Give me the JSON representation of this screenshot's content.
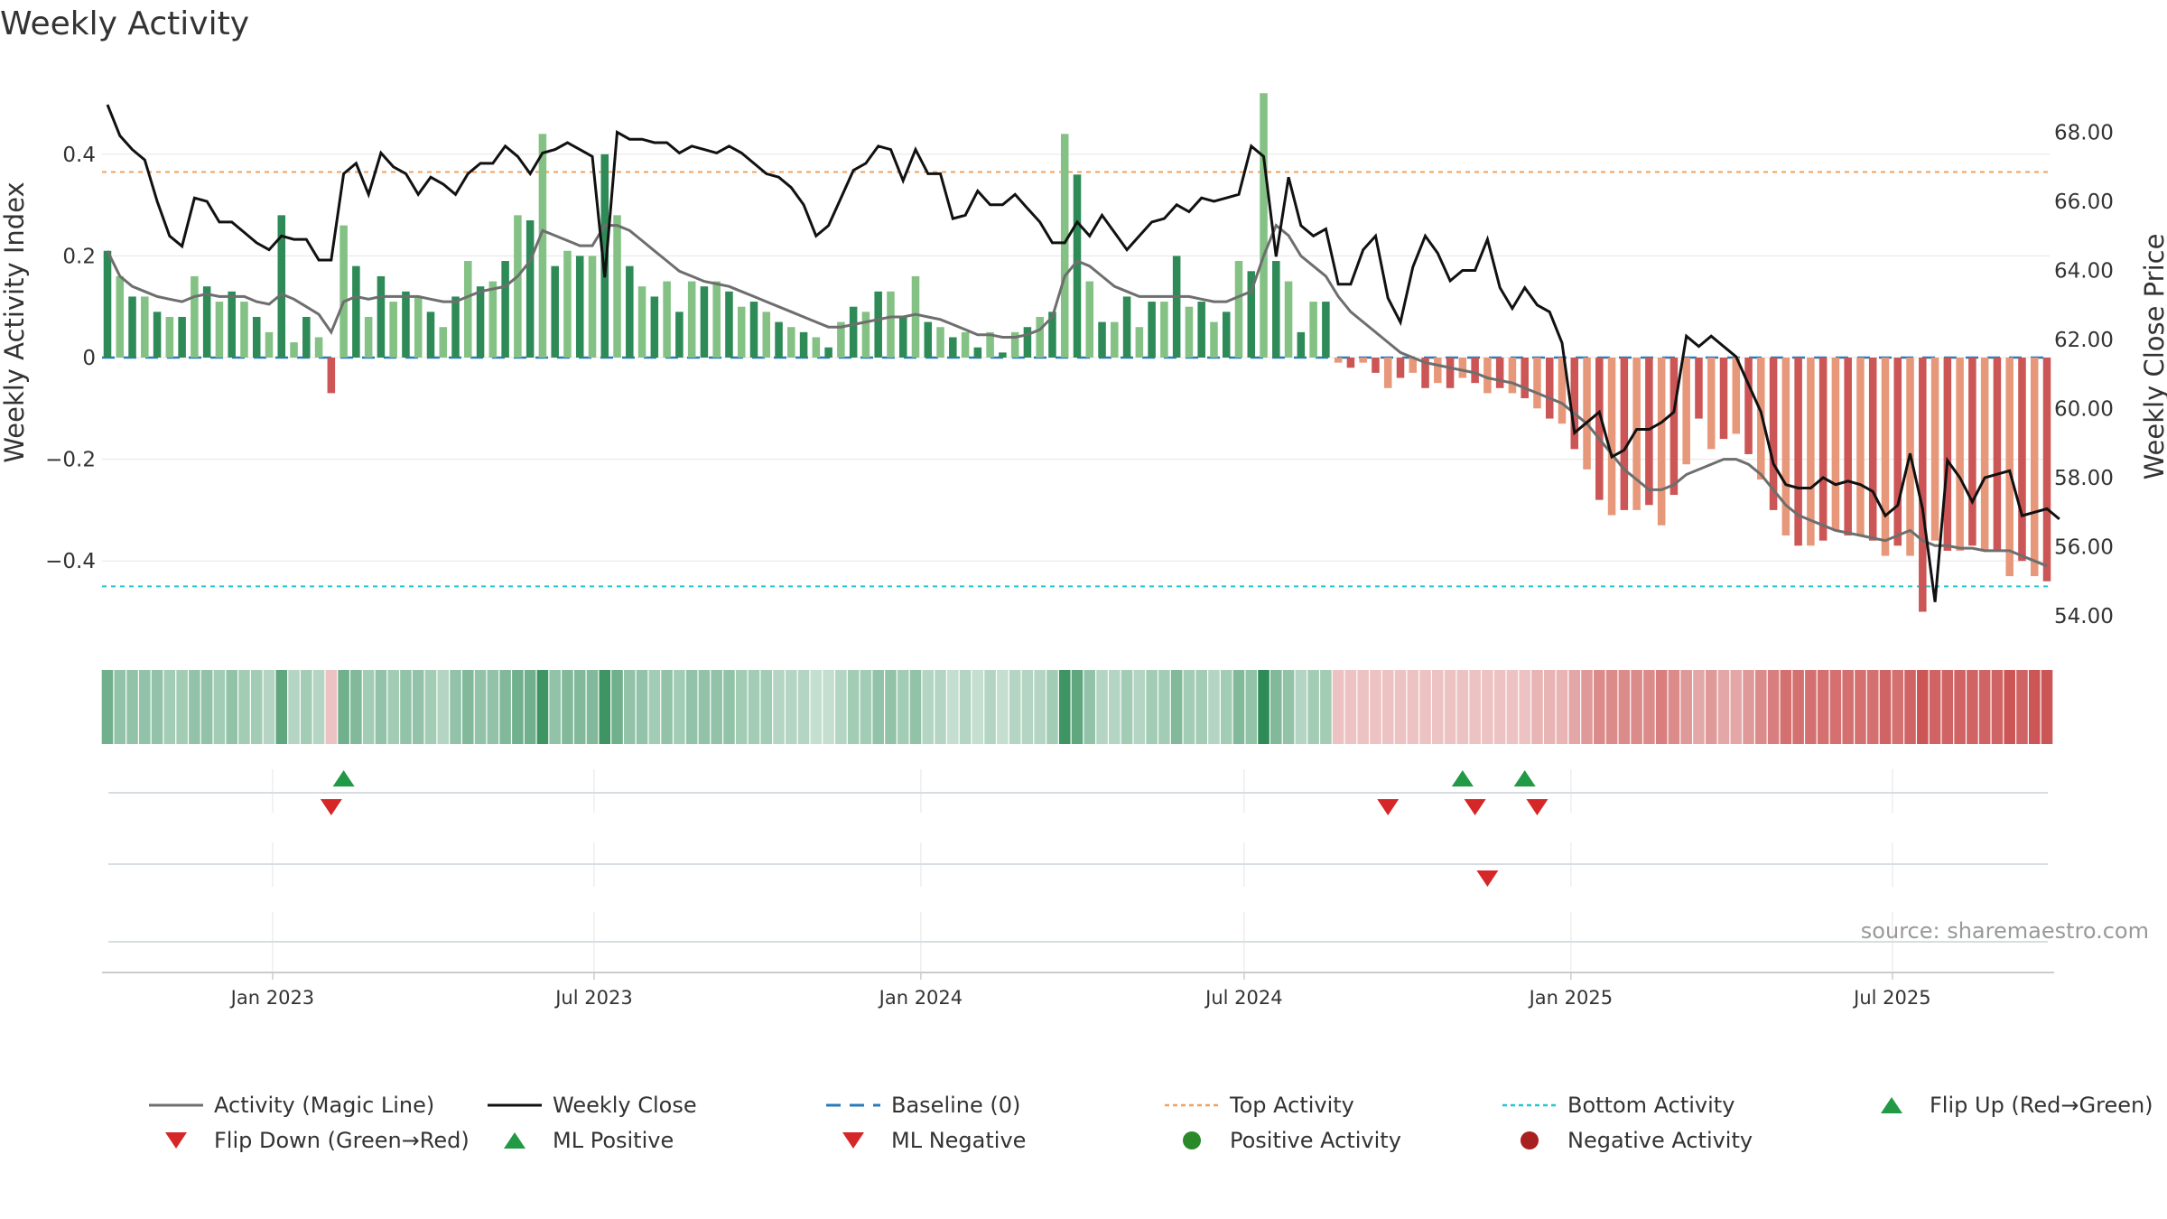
{
  "chart_data": {
    "type": "bar",
    "title": "Weekly Activity",
    "ylabel": "Weekly Activity Index",
    "y2label": "Weekly Close Price",
    "ylim": [
      -0.5,
      0.55
    ],
    "y2lim": [
      53.6,
      70.0
    ],
    "yticks": [
      "0.4",
      "0.2",
      "0",
      "−0.2",
      "−0.4"
    ],
    "ytick_values": [
      0.4,
      0.2,
      0,
      -0.2,
      -0.4
    ],
    "y2ticks": [
      "68.00",
      "66.00",
      "64.00",
      "62.00",
      "60.00",
      "58.00",
      "56.00",
      "54.00"
    ],
    "y2tick_values": [
      68,
      66,
      64,
      62,
      60,
      58,
      56,
      54
    ],
    "x_start": "2022-09-30",
    "x_step_days": 7,
    "xticks": [
      "Jan 2023",
      "Jul 2023",
      "Jan 2024",
      "Jul 2024",
      "Jan 2025",
      "Jul 2025"
    ],
    "xtick_dates": [
      "2023-01-01",
      "2023-07-01",
      "2024-01-01",
      "2024-07-01",
      "2025-01-01",
      "2025-07-01"
    ],
    "top_activity": 0.365,
    "bottom_activity": -0.45,
    "baseline": 0,
    "activity": [
      0.21,
      0.16,
      0.12,
      0.12,
      0.09,
      0.08,
      0.08,
      0.16,
      0.14,
      0.11,
      0.13,
      0.11,
      0.08,
      0.05,
      0.28,
      0.03,
      0.08,
      0.04,
      -0.07,
      0.26,
      0.18,
      0.08,
      0.16,
      0.11,
      0.13,
      0.12,
      0.09,
      0.06,
      0.12,
      0.19,
      0.14,
      0.15,
      0.19,
      0.28,
      0.27,
      0.44,
      0.18,
      0.21,
      0.2,
      0.2,
      0.4,
      0.28,
      0.18,
      0.14,
      0.12,
      0.15,
      0.09,
      0.15,
      0.14,
      0.15,
      0.13,
      0.1,
      0.11,
      0.09,
      0.07,
      0.06,
      0.05,
      0.04,
      0.02,
      0.07,
      0.1,
      0.09,
      0.13,
      0.13,
      0.08,
      0.16,
      0.07,
      0.06,
      0.04,
      0.05,
      0.02,
      0.05,
      0.01,
      0.05,
      0.06,
      0.08,
      0.09,
      0.44,
      0.36,
      0.15,
      0.07,
      0.07,
      0.12,
      0.06,
      0.11,
      0.11,
      0.2,
      0.1,
      0.11,
      0.07,
      0.09,
      0.19,
      0.17,
      0.52,
      0.19,
      0.15,
      0.05,
      0.11,
      0.11,
      -0.01,
      -0.02,
      -0.01,
      -0.03,
      -0.06,
      -0.04,
      -0.03,
      -0.06,
      -0.05,
      -0.06,
      -0.04,
      -0.05,
      -0.07,
      -0.06,
      -0.07,
      -0.08,
      -0.1,
      -0.12,
      -0.13,
      -0.18,
      -0.22,
      -0.28,
      -0.31,
      -0.3,
      -0.3,
      -0.29,
      -0.33,
      -0.27,
      -0.21,
      -0.12,
      -0.18,
      -0.16,
      -0.15,
      -0.19,
      -0.24,
      -0.3,
      -0.35,
      -0.37,
      -0.37,
      -0.36,
      -0.34,
      -0.35,
      -0.35,
      -0.36,
      -0.39,
      -0.37,
      -0.39,
      -0.5,
      -0.36,
      -0.38,
      -0.38,
      -0.37,
      -0.38,
      -0.38,
      -0.43,
      -0.4,
      -0.43,
      -0.44
    ],
    "magic_line": [
      0.21,
      0.16,
      0.14,
      0.13,
      0.12,
      0.115,
      0.11,
      0.12,
      0.125,
      0.12,
      0.12,
      0.12,
      0.11,
      0.105,
      0.125,
      0.115,
      0.1,
      0.085,
      0.05,
      0.11,
      0.12,
      0.115,
      0.12,
      0.12,
      0.12,
      0.12,
      0.115,
      0.11,
      0.11,
      0.12,
      0.13,
      0.135,
      0.14,
      0.16,
      0.19,
      0.25,
      0.24,
      0.23,
      0.22,
      0.22,
      0.26,
      0.26,
      0.25,
      0.23,
      0.21,
      0.19,
      0.17,
      0.16,
      0.15,
      0.145,
      0.14,
      0.13,
      0.12,
      0.11,
      0.1,
      0.09,
      0.08,
      0.07,
      0.06,
      0.06,
      0.065,
      0.07,
      0.075,
      0.08,
      0.08,
      0.085,
      0.08,
      0.075,
      0.065,
      0.055,
      0.045,
      0.045,
      0.04,
      0.04,
      0.045,
      0.055,
      0.08,
      0.16,
      0.19,
      0.18,
      0.16,
      0.14,
      0.13,
      0.12,
      0.12,
      0.12,
      0.12,
      0.12,
      0.115,
      0.11,
      0.11,
      0.12,
      0.13,
      0.2,
      0.26,
      0.24,
      0.2,
      0.18,
      0.16,
      0.12,
      0.09,
      0.07,
      0.05,
      0.03,
      0.01,
      0.0,
      -0.01,
      -0.015,
      -0.02,
      -0.025,
      -0.03,
      -0.04,
      -0.045,
      -0.05,
      -0.06,
      -0.07,
      -0.08,
      -0.09,
      -0.11,
      -0.13,
      -0.16,
      -0.19,
      -0.22,
      -0.24,
      -0.26,
      -0.26,
      -0.25,
      -0.23,
      -0.22,
      -0.21,
      -0.2,
      -0.2,
      -0.21,
      -0.23,
      -0.26,
      -0.29,
      -0.31,
      -0.32,
      -0.33,
      -0.34,
      -0.345,
      -0.35,
      -0.355,
      -0.36,
      -0.35,
      -0.34,
      -0.36,
      -0.37,
      -0.37,
      -0.375,
      -0.375,
      -0.38,
      -0.38,
      -0.38,
      -0.39,
      -0.4,
      -0.41
    ],
    "weekly_close": [
      68.8,
      67.9,
      67.5,
      67.2,
      66.0,
      65.0,
      64.7,
      66.1,
      66.0,
      65.4,
      65.4,
      65.1,
      64.8,
      64.6,
      65.0,
      64.9,
      64.9,
      64.3,
      64.3,
      66.8,
      67.1,
      66.2,
      67.4,
      67.0,
      66.8,
      66.2,
      66.7,
      66.5,
      66.2,
      66.8,
      67.1,
      67.1,
      67.6,
      67.3,
      66.8,
      67.4,
      67.5,
      67.7,
      67.5,
      67.3,
      63.8,
      68.0,
      67.8,
      67.8,
      67.7,
      67.7,
      67.4,
      67.6,
      67.5,
      67.4,
      67.6,
      67.4,
      67.1,
      66.8,
      66.7,
      66.4,
      65.9,
      65.0,
      65.3,
      66.1,
      66.9,
      67.1,
      67.6,
      67.5,
      66.6,
      67.5,
      66.8,
      66.8,
      65.5,
      65.6,
      66.3,
      65.9,
      65.9,
      66.2,
      65.8,
      65.4,
      64.8,
      64.8,
      65.4,
      65.0,
      65.6,
      65.1,
      64.6,
      65.0,
      65.4,
      65.5,
      65.9,
      65.7,
      66.1,
      66.0,
      66.1,
      66.2,
      67.6,
      67.3,
      64.4,
      66.7,
      65.3,
      65.0,
      65.2,
      63.6,
      63.6,
      64.6,
      65.0,
      63.2,
      62.5,
      64.1,
      65.0,
      64.5,
      63.7,
      64.0,
      64.0,
      64.9,
      63.5,
      62.9,
      63.5,
      63.0,
      62.8,
      61.9,
      59.3,
      59.6,
      59.9,
      58.6,
      58.8,
      59.4,
      59.4,
      59.6,
      59.9,
      62.1,
      61.8,
      62.1,
      61.8,
      61.5,
      60.7,
      59.9,
      58.4,
      57.8,
      57.7,
      57.7,
      58.0,
      57.8,
      57.9,
      57.8,
      57.6,
      56.9,
      57.2,
      58.7,
      57.1,
      54.4,
      58.5,
      58.0,
      57.3,
      58.0,
      58.1,
      58.2,
      56.9,
      57.0,
      57.1,
      56.8
    ],
    "heat_intensity": [
      0.6,
      0.4,
      0.4,
      0.4,
      0.4,
      0.3,
      0.3,
      0.4,
      0.4,
      0.3,
      0.4,
      0.3,
      0.3,
      0.2,
      0.7,
      0.2,
      0.3,
      0.2,
      0.2,
      0.6,
      0.5,
      0.3,
      0.4,
      0.3,
      0.4,
      0.4,
      0.3,
      0.2,
      0.4,
      0.5,
      0.4,
      0.4,
      0.5,
      0.6,
      0.6,
      0.9,
      0.4,
      0.5,
      0.5,
      0.5,
      0.9,
      0.6,
      0.4,
      0.4,
      0.3,
      0.4,
      0.3,
      0.4,
      0.4,
      0.4,
      0.4,
      0.3,
      0.3,
      0.3,
      0.2,
      0.2,
      0.2,
      0.1,
      0.1,
      0.2,
      0.3,
      0.3,
      0.4,
      0.4,
      0.3,
      0.4,
      0.2,
      0.2,
      0.1,
      0.2,
      0.1,
      0.2,
      0.1,
      0.2,
      0.2,
      0.2,
      0.3,
      0.9,
      0.7,
      0.4,
      0.2,
      0.2,
      0.3,
      0.2,
      0.3,
      0.3,
      0.5,
      0.3,
      0.3,
      0.2,
      0.3,
      0.5,
      0.4,
      1.0,
      0.5,
      0.4,
      0.2,
      0.3,
      0.3,
      0.2,
      0.2,
      0.2,
      0.2,
      0.2,
      0.2,
      0.2,
      0.2,
      0.2,
      0.2,
      0.2,
      0.2,
      0.2,
      0.2,
      0.2,
      0.2,
      0.3,
      0.3,
      0.3,
      0.4,
      0.5,
      0.6,
      0.6,
      0.6,
      0.6,
      0.6,
      0.7,
      0.6,
      0.5,
      0.4,
      0.5,
      0.4,
      0.4,
      0.5,
      0.6,
      0.7,
      0.8,
      0.8,
      0.8,
      0.8,
      0.8,
      0.8,
      0.8,
      0.8,
      0.9,
      0.8,
      0.9,
      1.0,
      0.9,
      0.9,
      0.9,
      0.9,
      0.9,
      0.9,
      1.0,
      0.9,
      1.0,
      1.0
    ],
    "flip_up_weeks": [
      19,
      109,
      114
    ],
    "flip_down_weeks": [
      18,
      103,
      110,
      115
    ],
    "ml_negative_weeks": [
      111
    ],
    "source_label": "source: sharemaestro.com",
    "legend": [
      {
        "label": "Activity (Magic Line)",
        "kind": "line",
        "color": "#6e6e6e"
      },
      {
        "label": "Weekly Close",
        "kind": "line",
        "color": "#111111"
      },
      {
        "label": "Baseline (0)",
        "kind": "dash",
        "color": "#2a7ab8"
      },
      {
        "label": "Top Activity",
        "kind": "dot",
        "color": "#f0a060"
      },
      {
        "label": "Bottom Activity",
        "kind": "dot",
        "color": "#20c6d0"
      },
      {
        "label": "Flip Up (Red→Green)",
        "kind": "tri-up",
        "color": "#229944"
      },
      {
        "label": "Flip Down (Green→Red)",
        "kind": "tri-down",
        "color": "#d62728"
      },
      {
        "label": "ML Positive",
        "kind": "tri-up",
        "color": "#229944"
      },
      {
        "label": "ML Negative",
        "kind": "tri-down",
        "color": "#d62728"
      },
      {
        "label": "Positive Activity",
        "kind": "circle",
        "color": "#2a8a2a"
      },
      {
        "label": "Negative Activity",
        "kind": "circle",
        "color": "#a82020"
      }
    ],
    "grid": true,
    "legend_position": "bottom"
  },
  "colors": {
    "pos_strong": "#2e8b57",
    "pos_light": "#84c184",
    "neg_strong": "#cc5555",
    "neg_light": "#e8987a",
    "grid": "#e6e6e6",
    "axis": "#cccccc"
  }
}
